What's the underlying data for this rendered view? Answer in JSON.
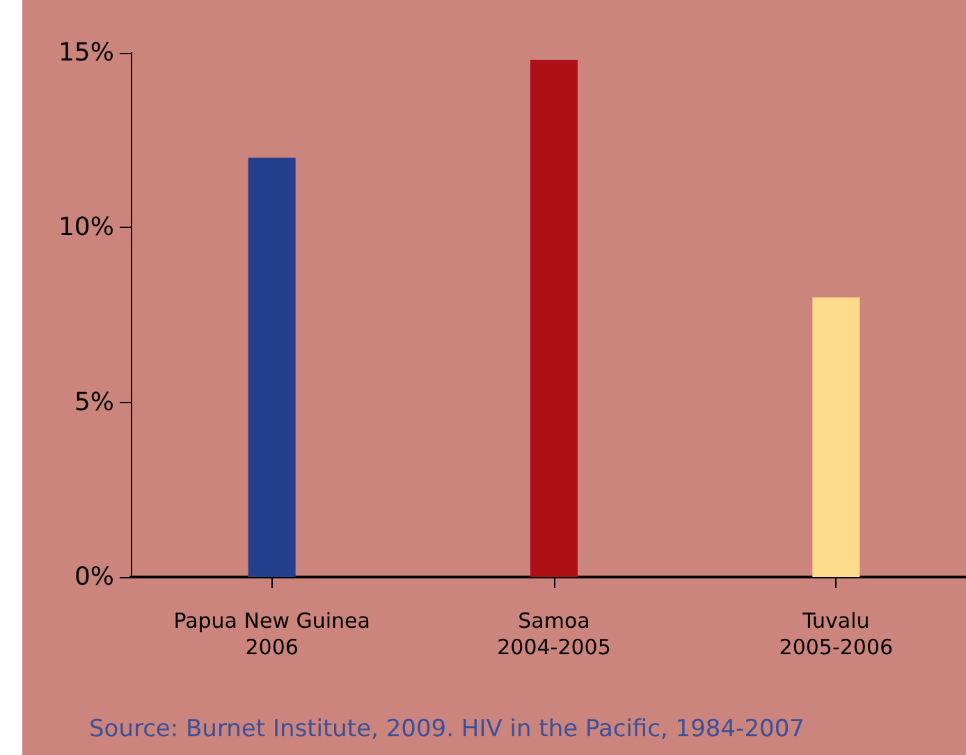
{
  "chart_data": {
    "type": "bar",
    "categories": [
      "Papua New Guinea\n2006",
      "Samoa\n2004-2005",
      "Tuvalu\n2005-2006"
    ],
    "values": [
      12,
      14.8,
      8
    ],
    "colors": [
      "#233f8d",
      "#ad1116",
      "#fcdc8c"
    ],
    "ylim": [
      0,
      15
    ],
    "yticks": [
      {
        "value": 0,
        "label": "0%"
      },
      {
        "value": 5,
        "label": "5%"
      },
      {
        "value": 10,
        "label": "10%"
      },
      {
        "value": 15,
        "label": "15%"
      }
    ],
    "grid": false,
    "annotations": [
      "Source: Burnet Institute, 2009. HIV in the Pacific, 1984-2007"
    ]
  }
}
